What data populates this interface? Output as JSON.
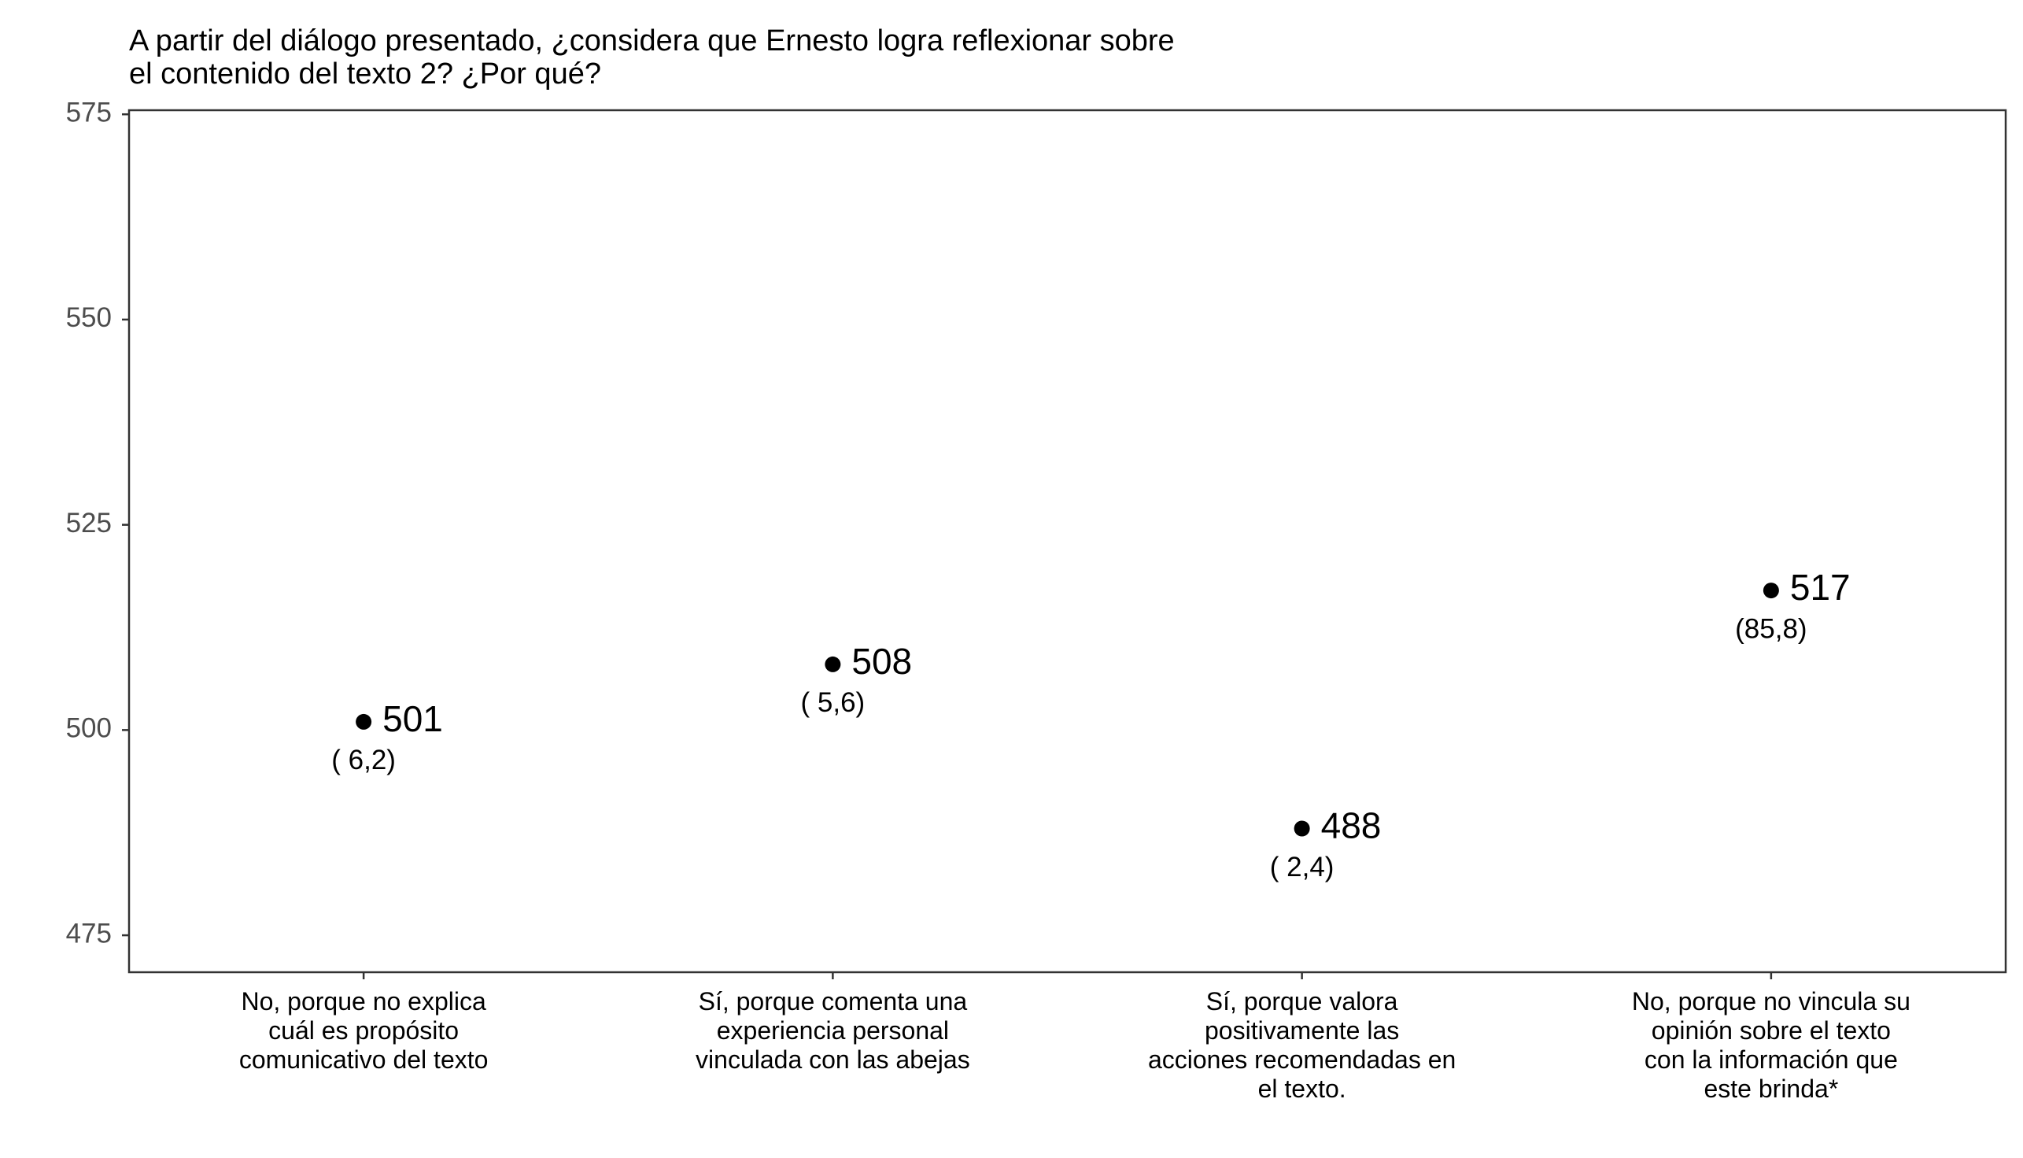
{
  "chart_data": {
    "type": "scatter",
    "title": [
      "A partir del diálogo presentado, ¿considera que Ernesto logra reflexionar sobre",
      "el contenido del texto 2? ¿Por qué?"
    ],
    "xlabel": "",
    "ylabel": "",
    "ylim": [
      470.5,
      575.5
    ],
    "yticks": [
      475,
      500,
      525,
      550,
      575
    ],
    "grid": false,
    "legend": "none",
    "categories": [
      [
        "No, porque no explica",
        "cuál es propósito",
        "comunicativo del texto"
      ],
      [
        "Sí, porque comenta una",
        "experiencia personal",
        "vinculada con las abejas"
      ],
      [
        "Sí, porque valora",
        "positivamente las",
        "acciones recomendadas en",
        "el texto."
      ],
      [
        "No, porque no vincula su",
        "opinión sobre el texto",
        "con la información que",
        "este brinda*"
      ]
    ],
    "values": [
      501,
      508,
      488,
      517
    ],
    "value_labels": [
      "501",
      "508",
      "488",
      "517"
    ],
    "percent_labels": [
      "( 6,2)",
      "( 5,6)",
      "( 2,4)",
      "(85,8)"
    ],
    "colors": {
      "point": "#000000",
      "panel_border": "#333333",
      "tick_text": "#4d4d4d"
    }
  }
}
